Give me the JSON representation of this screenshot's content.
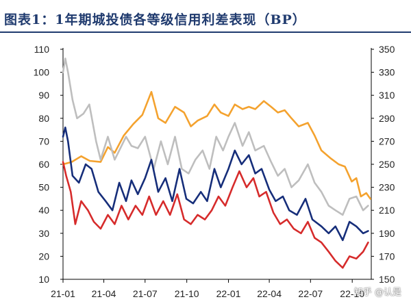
{
  "title": "图表1：1年期城投债各等级信用利差表现（BP）",
  "watermark": "知乎 @认是",
  "colors": {
    "orange": "#F4A22E",
    "gray": "#BEBEBE",
    "navy": "#162E7A",
    "red": "#D62B2B",
    "title": "#1f3a6e"
  },
  "chart_data": {
    "type": "line",
    "title": "",
    "x_tick_labels": [
      "21-01",
      "21-04",
      "21-07",
      "21-10",
      "22-01",
      "22-04",
      "22-07",
      "22-10"
    ],
    "left_axis": {
      "ylim": [
        10,
        110
      ],
      "ticks": [
        10,
        20,
        30,
        40,
        50,
        60,
        70,
        80,
        90,
        100,
        110
      ]
    },
    "right_axis": {
      "ylim": [
        150,
        350
      ],
      "ticks": [
        150,
        170,
        190,
        210,
        230,
        250,
        270,
        290,
        310,
        330,
        350
      ]
    },
    "series": [
      {
        "color": "orange",
        "axis": "right",
        "points": [
          [
            "2021-01-01",
            250
          ],
          [
            "2021-01-20",
            252
          ],
          [
            "2021-02-10",
            257
          ],
          [
            "2021-03-01",
            253
          ],
          [
            "2021-03-25",
            252
          ],
          [
            "2021-04-10",
            265
          ],
          [
            "2021-04-25",
            260
          ],
          [
            "2021-05-15",
            275
          ],
          [
            "2021-06-05",
            285
          ],
          [
            "2021-06-25",
            293
          ],
          [
            "2021-07-15",
            313
          ],
          [
            "2021-07-30",
            290
          ],
          [
            "2021-08-15",
            286
          ],
          [
            "2021-09-05",
            300
          ],
          [
            "2021-09-25",
            295
          ],
          [
            "2021-10-10",
            283
          ],
          [
            "2021-10-25",
            288
          ],
          [
            "2021-11-15",
            292
          ],
          [
            "2021-12-01",
            302
          ],
          [
            "2021-12-15",
            295
          ],
          [
            "2022-01-01",
            292
          ],
          [
            "2022-01-15",
            302
          ],
          [
            "2022-02-01",
            298
          ],
          [
            "2022-02-15",
            300
          ],
          [
            "2022-03-01",
            298
          ],
          [
            "2022-03-20",
            305
          ],
          [
            "2022-04-05",
            300
          ],
          [
            "2022-04-20",
            295
          ],
          [
            "2022-05-05",
            297
          ],
          [
            "2022-05-20",
            290
          ],
          [
            "2022-06-05",
            283
          ],
          [
            "2022-06-25",
            286
          ],
          [
            "2022-07-10",
            275
          ],
          [
            "2022-07-25",
            262
          ],
          [
            "2022-08-15",
            255
          ],
          [
            "2022-09-01",
            250
          ],
          [
            "2022-09-15",
            248
          ],
          [
            "2022-09-30",
            235
          ],
          [
            "2022-10-10",
            238
          ],
          [
            "2022-10-20",
            222
          ],
          [
            "2022-11-01",
            225
          ],
          [
            "2022-11-10",
            220
          ]
        ]
      },
      {
        "color": "gray",
        "axis": "left",
        "points": [
          [
            "2021-01-01",
            100
          ],
          [
            "2021-01-06",
            106
          ],
          [
            "2021-01-12",
            100
          ],
          [
            "2021-01-22",
            88
          ],
          [
            "2021-02-01",
            80
          ],
          [
            "2021-02-15",
            82
          ],
          [
            "2021-02-28",
            86
          ],
          [
            "2021-03-15",
            70
          ],
          [
            "2021-03-25",
            62
          ],
          [
            "2021-04-10",
            72
          ],
          [
            "2021-04-25",
            62
          ],
          [
            "2021-05-05",
            66
          ],
          [
            "2021-05-20",
            72
          ],
          [
            "2021-06-01",
            68
          ],
          [
            "2021-06-15",
            67
          ],
          [
            "2021-07-01",
            72
          ],
          [
            "2021-07-20",
            58
          ],
          [
            "2021-08-05",
            70
          ],
          [
            "2021-08-20",
            60
          ],
          [
            "2021-09-05",
            72
          ],
          [
            "2021-09-20",
            58
          ],
          [
            "2021-10-05",
            56
          ],
          [
            "2021-10-20",
            62
          ],
          [
            "2021-11-05",
            66
          ],
          [
            "2021-11-20",
            58
          ],
          [
            "2021-12-05",
            72
          ],
          [
            "2021-12-20",
            66
          ],
          [
            "2022-01-01",
            72
          ],
          [
            "2022-01-15",
            78
          ],
          [
            "2022-02-01",
            68
          ],
          [
            "2022-02-15",
            74
          ],
          [
            "2022-03-01",
            66
          ],
          [
            "2022-03-20",
            68
          ],
          [
            "2022-04-05",
            61
          ],
          [
            "2022-04-20",
            55
          ],
          [
            "2022-05-05",
            58
          ],
          [
            "2022-05-20",
            50
          ],
          [
            "2022-06-05",
            53
          ],
          [
            "2022-06-25",
            60
          ],
          [
            "2022-07-10",
            52
          ],
          [
            "2022-07-25",
            48
          ],
          [
            "2022-08-10",
            42
          ],
          [
            "2022-08-25",
            40
          ],
          [
            "2022-09-10",
            38
          ],
          [
            "2022-09-25",
            45
          ],
          [
            "2022-10-10",
            46
          ],
          [
            "2022-10-25",
            40
          ],
          [
            "2022-11-05",
            42
          ]
        ]
      },
      {
        "color": "navy",
        "axis": "left",
        "points": [
          [
            "2021-01-01",
            72
          ],
          [
            "2021-01-06",
            76
          ],
          [
            "2021-01-12",
            70
          ],
          [
            "2021-01-22",
            55
          ],
          [
            "2021-02-05",
            52
          ],
          [
            "2021-02-20",
            60
          ],
          [
            "2021-03-05",
            58
          ],
          [
            "2021-03-20",
            48
          ],
          [
            "2021-04-05",
            44
          ],
          [
            "2021-04-20",
            40
          ],
          [
            "2021-05-05",
            52
          ],
          [
            "2021-05-20",
            44
          ],
          [
            "2021-06-01",
            53
          ],
          [
            "2021-06-15",
            47
          ],
          [
            "2021-07-01",
            54
          ],
          [
            "2021-07-15",
            62
          ],
          [
            "2021-07-30",
            48
          ],
          [
            "2021-08-15",
            54
          ],
          [
            "2021-08-30",
            44
          ],
          [
            "2021-09-15",
            58
          ],
          [
            "2021-09-30",
            45
          ],
          [
            "2021-10-15",
            43
          ],
          [
            "2021-11-01",
            48
          ],
          [
            "2021-11-15",
            44
          ],
          [
            "2021-12-01",
            58
          ],
          [
            "2021-12-15",
            50
          ],
          [
            "2022-01-01",
            58
          ],
          [
            "2022-01-15",
            66
          ],
          [
            "2022-01-30",
            60
          ],
          [
            "2022-02-15",
            64
          ],
          [
            "2022-03-01",
            56
          ],
          [
            "2022-03-15",
            58
          ],
          [
            "2022-04-01",
            49
          ],
          [
            "2022-04-15",
            44
          ],
          [
            "2022-05-01",
            46
          ],
          [
            "2022-05-15",
            40
          ],
          [
            "2022-06-01",
            38
          ],
          [
            "2022-06-20",
            45
          ],
          [
            "2022-07-05",
            36
          ],
          [
            "2022-07-25",
            33
          ],
          [
            "2022-08-10",
            30
          ],
          [
            "2022-08-25",
            33
          ],
          [
            "2022-09-10",
            27
          ],
          [
            "2022-09-25",
            35
          ],
          [
            "2022-10-10",
            33
          ],
          [
            "2022-10-25",
            30
          ],
          [
            "2022-11-05",
            31
          ]
        ]
      },
      {
        "color": "red",
        "axis": "left",
        "points": [
          [
            "2021-01-01",
            61
          ],
          [
            "2021-01-08",
            55
          ],
          [
            "2021-01-18",
            48
          ],
          [
            "2021-01-28",
            34
          ],
          [
            "2021-02-10",
            44
          ],
          [
            "2021-02-25",
            40
          ],
          [
            "2021-03-10",
            35
          ],
          [
            "2021-03-25",
            32
          ],
          [
            "2021-04-10",
            38
          ],
          [
            "2021-04-25",
            34
          ],
          [
            "2021-05-10",
            42
          ],
          [
            "2021-05-25",
            36
          ],
          [
            "2021-06-10",
            42
          ],
          [
            "2021-06-25",
            38
          ],
          [
            "2021-07-10",
            46
          ],
          [
            "2021-07-25",
            38
          ],
          [
            "2021-08-10",
            44
          ],
          [
            "2021-08-25",
            38
          ],
          [
            "2021-09-10",
            47
          ],
          [
            "2021-09-25",
            36
          ],
          [
            "2021-10-10",
            34
          ],
          [
            "2021-10-25",
            38
          ],
          [
            "2021-11-10",
            36
          ],
          [
            "2021-11-25",
            40
          ],
          [
            "2021-12-10",
            46
          ],
          [
            "2021-12-25",
            42
          ],
          [
            "2022-01-10",
            50
          ],
          [
            "2022-01-25",
            57
          ],
          [
            "2022-02-10",
            50
          ],
          [
            "2022-02-25",
            54
          ],
          [
            "2022-03-10",
            46
          ],
          [
            "2022-03-25",
            48
          ],
          [
            "2022-04-10",
            39
          ],
          [
            "2022-04-25",
            34
          ],
          [
            "2022-05-10",
            36
          ],
          [
            "2022-05-25",
            32
          ],
          [
            "2022-06-10",
            30
          ],
          [
            "2022-06-25",
            35
          ],
          [
            "2022-07-10",
            28
          ],
          [
            "2022-07-25",
            26
          ],
          [
            "2022-08-10",
            22
          ],
          [
            "2022-08-25",
            18
          ],
          [
            "2022-09-10",
            15
          ],
          [
            "2022-09-25",
            20
          ],
          [
            "2022-10-10",
            19
          ],
          [
            "2022-10-25",
            22
          ],
          [
            "2022-11-05",
            26
          ]
        ]
      }
    ]
  }
}
